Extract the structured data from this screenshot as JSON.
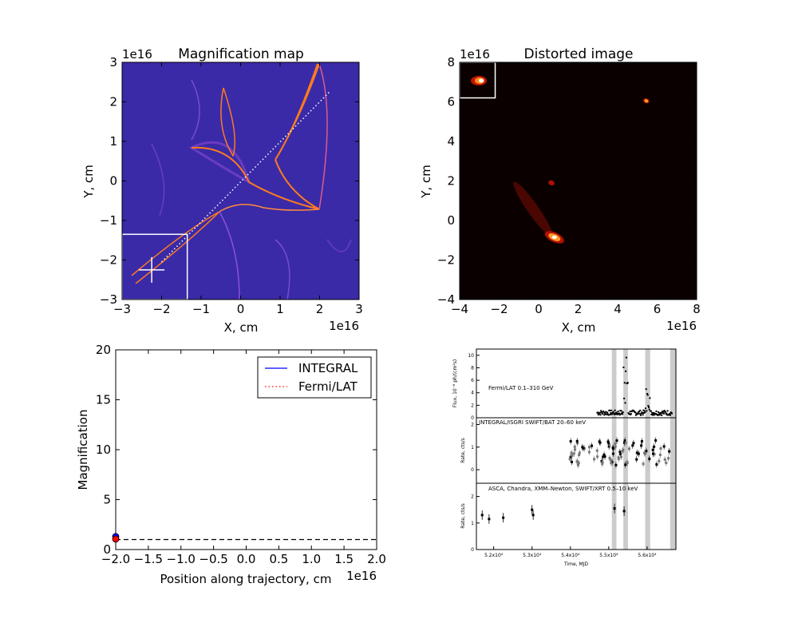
{
  "colors": {
    "magmap_bg": "#3a2aa8",
    "caustic_outer": "#6a3cc0",
    "caustic_hot": "#ff7a1e",
    "integral": "#0000ff",
    "fermi": "#ff0000",
    "shade": "#cccccc"
  },
  "chart_data": [
    {
      "id": "magnification-map",
      "type": "heatmap",
      "title": "Magnification map",
      "xlabel": "X, cm",
      "ylabel": "Y, cm",
      "x_multiplier": "1e16",
      "y_multiplier": "1e16",
      "xlim": [
        -3,
        3
      ],
      "ylim": [
        -3,
        3
      ],
      "x_ticks": [
        "−3",
        "−2",
        "−1",
        "0",
        "1",
        "2",
        "3"
      ],
      "y_ticks": [
        "−3",
        "−2",
        "−1",
        "0",
        "1",
        "2",
        "3"
      ],
      "trajectory": {
        "x": [
          -2.0,
          2.25
        ],
        "y": [
          -2.05,
          2.25
        ]
      },
      "inset_box": {
        "x": [
          -3.0,
          -1.35
        ],
        "y": [
          -3.0,
          -1.35
        ]
      },
      "marker": {
        "x": -2.25,
        "y": -2.25
      }
    },
    {
      "id": "distorted-image",
      "type": "heatmap",
      "title": "Distorted image",
      "xlabel": "X, cm",
      "ylabel": "Y, cm",
      "x_multiplier": "1e16",
      "y_multiplier": "1e16",
      "xlim": [
        -4,
        8
      ],
      "ylim": [
        -4,
        8
      ],
      "x_ticks": [
        "−4",
        "−2",
        "0",
        "2",
        "4",
        "6",
        "8"
      ],
      "y_ticks": [
        "−4",
        "−2",
        "0",
        "2",
        "4",
        "6",
        "8"
      ],
      "bright_spots": [
        {
          "x": 0.8,
          "y": -0.85
        },
        {
          "x": 5.45,
          "y": 6.05
        },
        {
          "x": 0.65,
          "y": 1.9
        }
      ],
      "inset_box": {
        "x": [
          -4.0,
          -2.2
        ],
        "y": [
          6.2,
          8.0
        ]
      }
    },
    {
      "id": "magnification-curve",
      "type": "line",
      "xlabel": "Position along trajectory, cm",
      "ylabel": "Magnification",
      "x_multiplier": "1e16",
      "xlim": [
        -2.0,
        2.0
      ],
      "ylim": [
        0,
        20
      ],
      "x_ticks": [
        "−2.0",
        "−1.5",
        "−1.0",
        "−0.5",
        "0.0",
        "0.5",
        "1.0",
        "1.5",
        "2.0"
      ],
      "y_ticks": [
        "0",
        "5",
        "10",
        "15",
        "20"
      ],
      "baseline": 1,
      "series": [
        {
          "name": "INTEGRAL",
          "style": "solid",
          "x": [
            -2.0
          ],
          "y": [
            1.3
          ]
        },
        {
          "name": "Fermi/LAT",
          "style": "dotted",
          "x": [
            -2.0
          ],
          "y": [
            1.05
          ]
        }
      ],
      "legend": "top-right"
    },
    {
      "id": "light-curves",
      "type": "scatter",
      "xlabel": "Time, MJD",
      "x_ticks": [
        "5.2x10⁴",
        "5.3x10⁴",
        "5.4x10⁴",
        "5.5x10⁴",
        "5.6x10⁴"
      ],
      "x_tick_values": [
        52000,
        53000,
        54000,
        55000,
        56000
      ],
      "xlim": [
        51550,
        56750
      ],
      "shaded_intervals": [
        [
          55080,
          55200
        ],
        [
          55380,
          55500
        ],
        [
          55950,
          56080
        ],
        [
          56600,
          56750
        ]
      ],
      "panels": [
        {
          "label": "Fermi/LAT 0.1–310 GeV",
          "ylabel": "Flux, 10⁻⁶ ph/(cm²s)",
          "y_ticks": [
            "0",
            "2",
            "4",
            "6",
            "8",
            "10"
          ],
          "ylim": [
            0,
            11
          ]
        },
        {
          "label": "INTEGRAL/ISGRI SWIFT/BAT 20–60 keV",
          "ylabel": "Rate, cts/s",
          "y_ticks": [
            "0",
            "1",
            "2"
          ],
          "ylim": [
            -0.6,
            2.3
          ]
        },
        {
          "label": "ASCA, Chandra, XMM–Newton, SWIFT/XRT 0.5–10 keV",
          "ylabel": "Rate, cts/s",
          "y_ticks": [
            "0",
            "1",
            "2"
          ],
          "ylim": [
            0,
            2.5
          ]
        }
      ],
      "xray_points": {
        "x": [
          51700,
          51880,
          52250,
          53000,
          53030,
          55150,
          55400
        ],
        "y": [
          1.3,
          1.15,
          1.2,
          1.5,
          1.3,
          1.55,
          1.45
        ]
      }
    }
  ]
}
